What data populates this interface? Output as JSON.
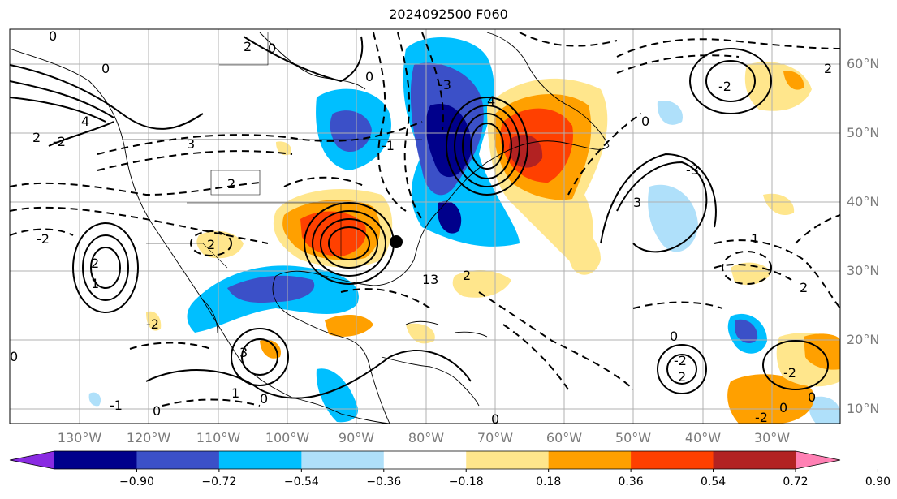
{
  "title": "2024092500 F060",
  "colors": {
    "bins": [
      "#8a2be2",
      "#00008b",
      "#3b50c8",
      "#00bfff",
      "#afe0fa",
      "#ffffff",
      "#ffe68c",
      "#ffa000",
      "#ff4000",
      "#b22222",
      "#ff80b4"
    ],
    "contour": "#000000",
    "grid": "#b0b0b0",
    "coast": "#000000"
  },
  "map": {
    "lat_labels": [
      "60°N",
      "50°N",
      "40°N",
      "30°N",
      "20°N",
      "10°N"
    ],
    "lon_labels": [
      "130°W",
      "120°W",
      "110°W",
      "100°W",
      "90°W",
      "80°W",
      "70°W",
      "60°W",
      "50°W",
      "40°W",
      "30°W"
    ]
  },
  "colorbar": {
    "levels": [
      "−0.90",
      "−0.72",
      "−0.54",
      "−0.36",
      "−0.18",
      "0.18",
      "0.36",
      "0.54",
      "0.72",
      "0.90"
    ],
    "extend": "both"
  },
  "contour_labels": [
    "0",
    "2",
    "-2",
    "4",
    "3",
    "-3",
    "1",
    "-1",
    "13"
  ]
}
